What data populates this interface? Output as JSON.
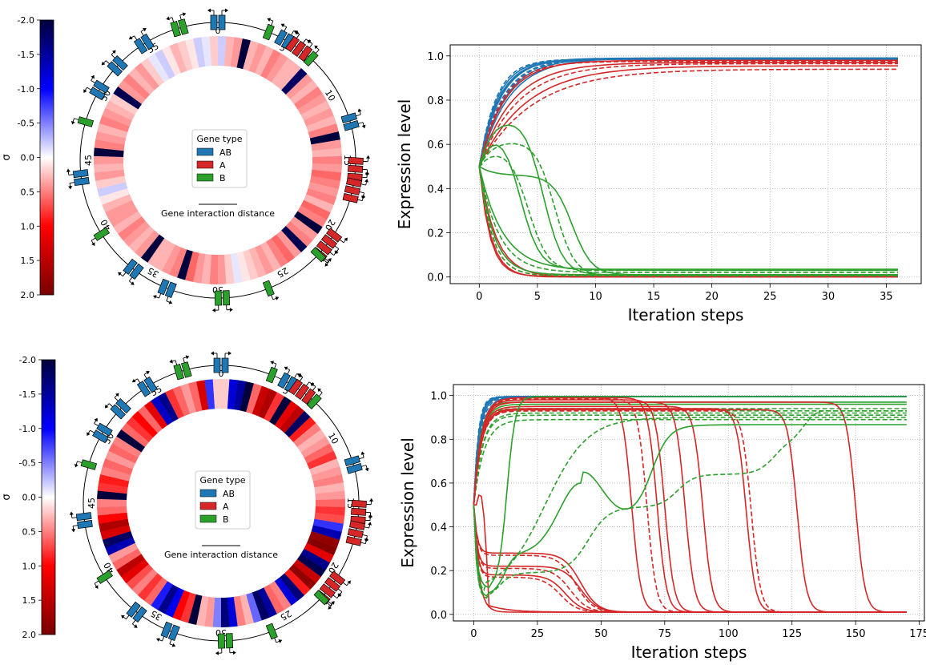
{
  "colors": {
    "AB": "#1f77b4",
    "A": "#d62728",
    "B": "#2ca02c"
  },
  "chart_data": [
    {
      "type": "heatmap",
      "panel": "top-left",
      "colorbar": {
        "label": "σ",
        "ticks": [
          "-2.0",
          "-1.5",
          "-1.0",
          "-0.5",
          "0.0",
          "0.5",
          "1.0",
          "1.5",
          "2.0"
        ],
        "range": [
          -2.0,
          2.0
        ],
        "colormap": "seismic_r"
      },
      "ring_ticks": [
        "0",
        "5",
        "10",
        "15",
        "20",
        "25",
        "30",
        "35",
        "40",
        "45",
        "50",
        "55"
      ],
      "legend": {
        "title": "Gene type",
        "items": [
          "AB",
          "A",
          "B"
        ]
      },
      "scale_label": "Gene interaction distance",
      "ring_sigma": [
        -0.2,
        0.3,
        0.4,
        -2.0,
        0.3,
        0.4,
        0.3,
        0.5,
        0.4,
        0.3,
        0.3,
        -1.8,
        0.4,
        0.3,
        0.5,
        0.4,
        0.3,
        0.4,
        0.3,
        0.5,
        -2.0,
        0.4,
        0.3,
        0.5,
        0.4,
        0.6,
        0.5,
        0.4,
        0.5,
        0.3,
        0.6,
        0.5,
        -2.0,
        0.4,
        0.5,
        -1.9,
        0.4,
        0.6,
        0.5,
        0.3,
        0.4,
        0.3,
        0.2,
        0.1,
        -0.1,
        0.2,
        0.4,
        0.5,
        0.3,
        0.4,
        0.6,
        -2.0,
        0.5,
        0.4,
        0.3,
        0.3,
        -2.0,
        0.4,
        0.3,
        0.4,
        0.5,
        0.3,
        0.4,
        0.4,
        0.3,
        0.1,
        -0.2,
        0.2,
        0.4,
        0.3,
        0.4,
        -2.0,
        0.5,
        0.4,
        0.3,
        0.5,
        0.4,
        0.3,
        0.2,
        -1.9,
        0.4,
        0.5,
        0.3,
        0.4,
        0.2,
        -0.1,
        -0.2,
        0.1,
        0.3,
        0.2,
        0.1,
        -0.2,
        -0.1,
        0.2
      ]
    },
    {
      "type": "line",
      "panel": "top-right",
      "xlabel": "Iteration steps",
      "ylabel": "Expression level",
      "xlim": [
        -2.5,
        38
      ],
      "ylim": [
        -0.03,
        1.05
      ],
      "xticks": [
        "0",
        "5",
        "10",
        "15",
        "20",
        "25",
        "30",
        "35"
      ],
      "yticks": [
        "0.0",
        "0.2",
        "0.4",
        "0.6",
        "0.8",
        "1.0"
      ],
      "grid": true
    },
    {
      "type": "heatmap",
      "panel": "bottom-left",
      "colorbar": {
        "label": "σ",
        "ticks": [
          "-2.0",
          "-1.5",
          "-1.0",
          "-0.5",
          "0.0",
          "0.5",
          "1.0",
          "1.5",
          "2.0"
        ],
        "range": [
          -2.0,
          2.0
        ],
        "colormap": "seismic_r"
      },
      "ring_ticks": [
        "0",
        "5",
        "10",
        "15",
        "20",
        "25",
        "30",
        "35",
        "40",
        "45",
        "50",
        "55"
      ],
      "legend": {
        "title": "Gene type",
        "items": [
          "AB",
          "A",
          "B"
        ]
      },
      "scale_label": "Gene interaction distance",
      "ring_sigma": [
        0.2,
        -1.2,
        -1.5,
        -2.0,
        0.6,
        1.4,
        1.6,
        0.8,
        -2.0,
        1.2,
        1.5,
        -1.8,
        0.9,
        0.5,
        0.3,
        0.4,
        0.6,
        0.8,
        0.3,
        0.4,
        0.5,
        0.3,
        0.4,
        0.6,
        0.8,
        0.7,
        -0.8,
        -1.4,
        1.8,
        1.9,
        1.2,
        -1.6,
        -1.9,
        1.4,
        1.8,
        0.9,
        -1.7,
        -1.2,
        0.5,
        0.6,
        -1.5,
        -1.8,
        -0.6,
        0.3,
        0.5,
        -1.2,
        -1.7,
        -0.5,
        0.4,
        0.3,
        -2.0,
        0.8,
        1.0,
        -1.1,
        -1.6,
        -0.9,
        0.6,
        0.8,
        0.5,
        0.7,
        1.2,
        1.5,
        0.6,
        0.4,
        -1.4,
        -1.8,
        1.3,
        1.6,
        1.0,
        0.6,
        0.5,
        -2.0,
        0.8,
        0.9,
        0.5,
        0.6,
        0.4,
        0.6,
        0.5,
        -2.0,
        0.6,
        0.8,
        1.0,
        0.6,
        1.2,
        -1.3,
        -1.6,
        0.8,
        0.6,
        0.4,
        0.6,
        1.3,
        -0.8,
        0.2
      ]
    },
    {
      "type": "line",
      "panel": "bottom-right",
      "xlabel": "Iteration steps",
      "ylabel": "Expression level",
      "xlim": [
        -8,
        177
      ],
      "ylim": [
        -0.03,
        1.05
      ],
      "xticks": [
        "0",
        "25",
        "50",
        "75",
        "100",
        "125",
        "150",
        "175"
      ],
      "yticks": [
        "0.0",
        "0.2",
        "0.4",
        "0.6",
        "0.8",
        "1.0"
      ],
      "grid": true
    }
  ]
}
